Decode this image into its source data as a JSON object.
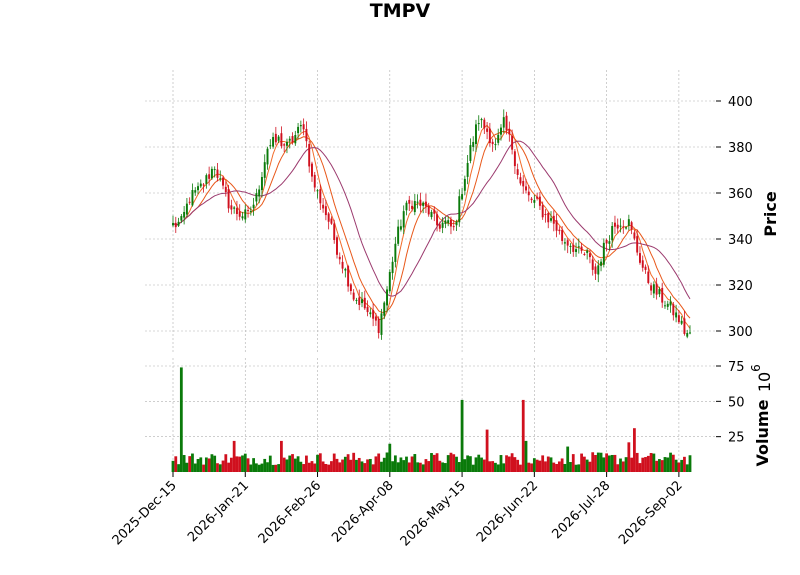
{
  "chart_data": {
    "type": "candlestick",
    "title": "TMPV",
    "price_panel": {
      "ylabel": "Price",
      "yticks": [
        300,
        320,
        340,
        360,
        380,
        400
      ],
      "ylim": [
        293,
        412
      ],
      "grid": true,
      "moving_average_colors": [
        "#f26b2a",
        "#e8581a",
        "#9b3a6e"
      ]
    },
    "volume_panel": {
      "ylabel": "Volume",
      "ylabel_exponent": "6",
      "yticks": [
        25,
        50,
        75
      ],
      "ylim": [
        0,
        77
      ],
      "grid": true
    },
    "x_tick_labels": [
      "2025-Dec-15",
      "2026-Jan-21",
      "2026-Feb-26",
      "2026-Apr-08",
      "2026-May-15",
      "2026-Jun-22",
      "2026-Jul-28",
      "2026-Sep-02"
    ],
    "x_tick_indices": [
      0,
      26,
      52,
      78,
      104,
      130,
      156,
      182
    ],
    "up_color": "#0a7a0a",
    "down_color": "#d0101e",
    "anchors": [
      [
        0,
        346
      ],
      [
        3,
        347
      ],
      [
        6,
        358
      ],
      [
        9,
        361
      ],
      [
        12,
        366
      ],
      [
        15,
        372
      ],
      [
        18,
        361
      ],
      [
        21,
        353
      ],
      [
        24,
        351
      ],
      [
        27,
        350
      ],
      [
        30,
        358
      ],
      [
        34,
        380
      ],
      [
        38,
        383
      ],
      [
        41,
        380
      ],
      [
        44,
        385
      ],
      [
        47,
        390
      ],
      [
        50,
        366
      ],
      [
        53,
        357
      ],
      [
        56,
        348
      ],
      [
        59,
        336
      ],
      [
        62,
        326
      ],
      [
        65,
        315
      ],
      [
        68,
        312
      ],
      [
        71,
        306
      ],
      [
        74,
        302
      ],
      [
        77,
        318
      ],
      [
        80,
        338
      ],
      [
        83,
        352
      ],
      [
        86,
        356
      ],
      [
        89,
        355
      ],
      [
        92,
        352
      ],
      [
        95,
        346
      ],
      [
        98,
        347
      ],
      [
        101,
        344
      ],
      [
        104,
        362
      ],
      [
        107,
        379
      ],
      [
        110,
        392
      ],
      [
        113,
        387
      ],
      [
        116,
        380
      ],
      [
        119,
        390
      ],
      [
        122,
        380
      ],
      [
        125,
        364
      ],
      [
        128,
        358
      ],
      [
        131,
        355
      ],
      [
        134,
        350
      ],
      [
        137,
        347
      ],
      [
        140,
        340
      ],
      [
        143,
        338
      ],
      [
        146,
        334
      ],
      [
        149,
        333
      ],
      [
        152,
        325
      ],
      [
        155,
        336
      ],
      [
        158,
        345
      ],
      [
        161,
        348
      ],
      [
        164,
        347
      ],
      [
        167,
        335
      ],
      [
        170,
        324
      ],
      [
        173,
        318
      ],
      [
        176,
        314
      ],
      [
        179,
        310
      ],
      [
        182,
        305
      ],
      [
        184,
        300
      ],
      [
        186,
        298
      ]
    ],
    "volume_spikes": [
      [
        3,
        74,
        "up"
      ],
      [
        22,
        22,
        "down"
      ],
      [
        39,
        22,
        "down"
      ],
      [
        78,
        20,
        "up"
      ],
      [
        104,
        51,
        "up"
      ],
      [
        113,
        30,
        "down"
      ],
      [
        126,
        51,
        "down"
      ],
      [
        127,
        22,
        "up"
      ],
      [
        142,
        18,
        "up"
      ],
      [
        164,
        21,
        "down"
      ],
      [
        166,
        31,
        "down"
      ]
    ]
  }
}
